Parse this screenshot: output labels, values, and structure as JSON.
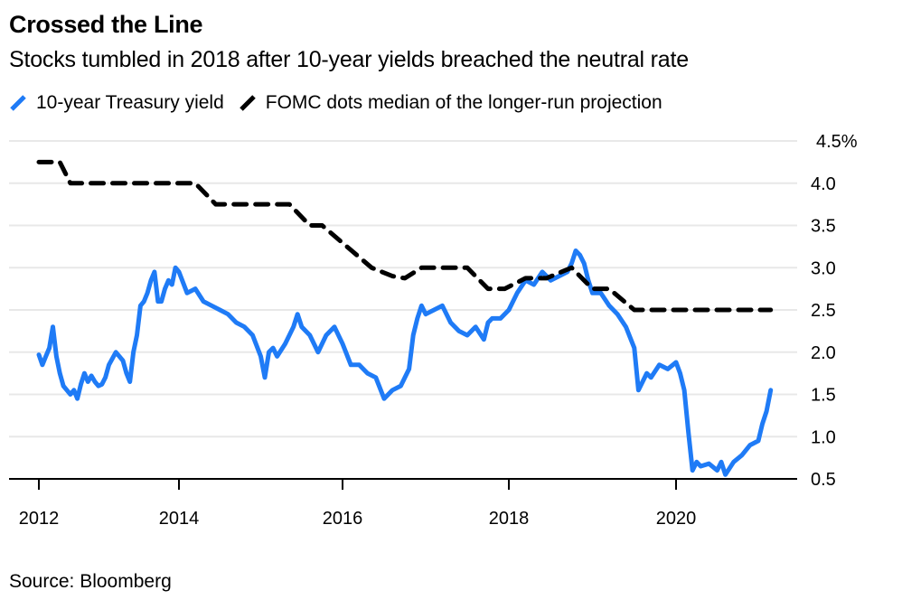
{
  "header": {
    "title": "Crossed the Line",
    "subtitle": "Stocks tumbled in 2018 after 10-year yields breached the neutral rate"
  },
  "legend": [
    {
      "label": "10-year Treasury yield",
      "color": "#1f7bf6",
      "icon": "blue-slash-icon"
    },
    {
      "label": "FOMC dots median of the longer-run projection",
      "color": "#000000",
      "icon": "black-slash-icon"
    }
  ],
  "footer": {
    "source": "Source: Bloomberg"
  },
  "chart_data": {
    "type": "line",
    "title": "Crossed the Line",
    "subtitle": "Stocks tumbled in 2018 after 10-year yields breached the neutral rate",
    "xlabel": "",
    "ylabel": "",
    "xlim": [
      2011.95,
      2021.5
    ],
    "ylim": [
      0.5,
      4.5
    ],
    "x_ticks": [
      2012,
      2014,
      2016,
      2018,
      2020
    ],
    "x_tick_labels": [
      "2012",
      "2014",
      "2016",
      "2018",
      "2020"
    ],
    "y_ticks": [
      0.5,
      1.0,
      1.5,
      2.0,
      2.5,
      3.0,
      3.5,
      4.0,
      4.5
    ],
    "y_tick_labels": [
      "0.5",
      "1.0",
      "1.5",
      "2.0",
      "2.5",
      "3.0",
      "3.5",
      "4.0",
      "4.5%"
    ],
    "y_axis_position": "right",
    "grid": true,
    "legend_position": "top-left",
    "series": [
      {
        "name": "10-year Treasury yield",
        "color": "#1f7bf6",
        "style": "solid",
        "x": [
          2012.0,
          2012.05,
          2012.1,
          2012.15,
          2012.2,
          2012.25,
          2012.3,
          2012.35,
          2012.4,
          2012.45,
          2012.5,
          2012.55,
          2012.6,
          2012.65,
          2012.7,
          2012.75,
          2012.8,
          2012.85,
          2012.9,
          2012.95,
          2013.0,
          2013.1,
          2013.2,
          2013.25,
          2013.3,
          2013.35,
          2013.4,
          2013.45,
          2013.5,
          2013.55,
          2013.6,
          2013.65,
          2013.7,
          2013.75,
          2013.8,
          2013.85,
          2013.9,
          2013.95,
          2014.0,
          2014.1,
          2014.2,
          2014.3,
          2014.4,
          2014.5,
          2014.6,
          2014.7,
          2014.8,
          2014.9,
          2015.0,
          2015.05,
          2015.1,
          2015.15,
          2015.2,
          2015.3,
          2015.4,
          2015.45,
          2015.5,
          2015.6,
          2015.7,
          2015.8,
          2015.9,
          2016.0,
          2016.1,
          2016.2,
          2016.3,
          2016.4,
          2016.5,
          2016.55,
          2016.6,
          2016.7,
          2016.8,
          2016.85,
          2016.9,
          2016.95,
          2017.0,
          2017.1,
          2017.2,
          2017.3,
          2017.4,
          2017.5,
          2017.6,
          2017.7,
          2017.75,
          2017.8,
          2017.9,
          2018.0,
          2018.1,
          2018.2,
          2018.3,
          2018.4,
          2018.5,
          2018.6,
          2018.7,
          2018.75,
          2018.8,
          2018.85,
          2018.9,
          2018.95,
          2019.0,
          2019.1,
          2019.2,
          2019.3,
          2019.4,
          2019.5,
          2019.55,
          2019.6,
          2019.65,
          2019.7,
          2019.8,
          2019.9,
          2020.0,
          2020.05,
          2020.1,
          2020.15,
          2020.2,
          2020.25,
          2020.3,
          2020.4,
          2020.5,
          2020.55,
          2020.6,
          2020.7,
          2020.8,
          2020.9,
          2021.0,
          2021.05,
          2021.1,
          2021.15
        ],
        "values": [
          1.97,
          1.85,
          1.95,
          2.05,
          2.3,
          1.95,
          1.75,
          1.6,
          1.55,
          1.5,
          1.55,
          1.45,
          1.62,
          1.75,
          1.65,
          1.72,
          1.65,
          1.6,
          1.62,
          1.7,
          1.85,
          2.0,
          1.9,
          1.75,
          1.65,
          2.0,
          2.2,
          2.55,
          2.6,
          2.7,
          2.85,
          2.95,
          2.6,
          2.6,
          2.75,
          2.85,
          2.8,
          3.0,
          2.95,
          2.7,
          2.75,
          2.6,
          2.55,
          2.5,
          2.45,
          2.35,
          2.3,
          2.2,
          1.95,
          1.7,
          2.0,
          2.05,
          1.95,
          2.1,
          2.3,
          2.45,
          2.3,
          2.2,
          2.0,
          2.2,
          2.3,
          2.1,
          1.85,
          1.85,
          1.75,
          1.7,
          1.45,
          1.5,
          1.55,
          1.6,
          1.8,
          2.2,
          2.4,
          2.55,
          2.45,
          2.5,
          2.55,
          2.35,
          2.25,
          2.2,
          2.3,
          2.15,
          2.35,
          2.4,
          2.4,
          2.5,
          2.7,
          2.85,
          2.8,
          2.95,
          2.85,
          2.9,
          2.95,
          3.05,
          3.2,
          3.15,
          3.05,
          2.85,
          2.7,
          2.7,
          2.55,
          2.45,
          2.3,
          2.05,
          1.55,
          1.65,
          1.75,
          1.7,
          1.85,
          1.8,
          1.88,
          1.75,
          1.55,
          1.05,
          0.6,
          0.7,
          0.65,
          0.68,
          0.6,
          0.7,
          0.55,
          0.7,
          0.78,
          0.9,
          0.95,
          1.15,
          1.3,
          1.55
        ]
      },
      {
        "name": "FOMC dots median of the longer-run projection",
        "color": "#000000",
        "style": "dashed",
        "x": [
          2012.0,
          2012.3,
          2012.45,
          2014.2,
          2014.45,
          2015.35,
          2015.6,
          2015.75,
          2016.35,
          2016.6,
          2016.75,
          2016.95,
          2017.5,
          2017.75,
          2017.95,
          2018.2,
          2018.45,
          2018.75,
          2019.0,
          2019.2,
          2019.5,
          2021.15
        ],
        "values": [
          4.25,
          4.25,
          4.0,
          4.0,
          3.75,
          3.75,
          3.5,
          3.5,
          3.0,
          2.9,
          2.875,
          3.0,
          3.0,
          2.75,
          2.75,
          2.875,
          2.875,
          3.0,
          2.75,
          2.75,
          2.5,
          2.5
        ]
      }
    ]
  }
}
